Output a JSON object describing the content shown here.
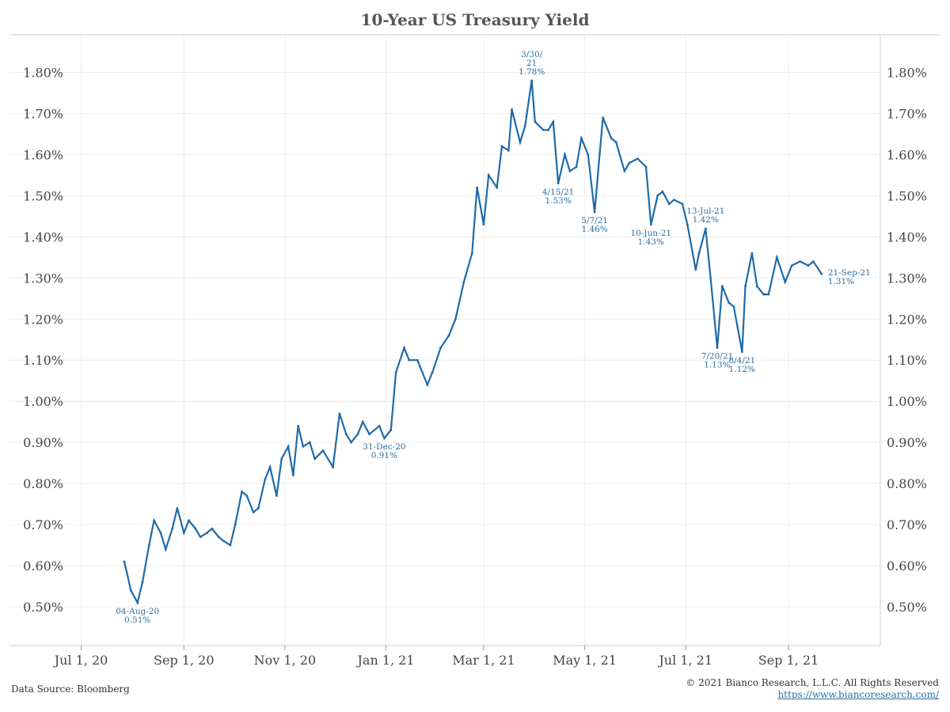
{
  "footer": {
    "source": "Data Source: Bloomberg",
    "copyright": "© 2021 Bianco Research, L.L.C. All Rights Reserved",
    "url": "https://www.biancoresearch.com/"
  },
  "colors": {
    "series": "#1f6aa8",
    "annotation": "#2c6ea2",
    "grid": "#ececec",
    "axis": "#cccccc"
  },
  "chart_data": {
    "type": "line",
    "title": "10-Year US Treasury Yield",
    "xlabel": "",
    "ylabel": "",
    "x_ticks": [
      "Jul 1, 20",
      "Sep 1, 20",
      "Nov 1, 20",
      "Jan 1, 21",
      "Mar 1, 21",
      "May 1, 21",
      "Jul 1, 21",
      "Sep 1, 21"
    ],
    "y_ticks": [
      "0.50%",
      "0.60%",
      "0.70%",
      "0.80%",
      "0.90%",
      "1.00%",
      "1.10%",
      "1.20%",
      "1.30%",
      "1.40%",
      "1.50%",
      "1.60%",
      "1.70%",
      "1.80%"
    ],
    "ylim": [
      0.45,
      1.9
    ],
    "xlim": [
      "2020-06-25",
      "2021-10-15"
    ],
    "grid": true,
    "dual_y_axis": true,
    "series": [
      {
        "points": [
          [
            "2020-07-27",
            0.61
          ],
          [
            "2020-07-31",
            0.54
          ],
          [
            "2020-08-04",
            0.51
          ],
          [
            "2020-08-07",
            0.56
          ],
          [
            "2020-08-11",
            0.65
          ],
          [
            "2020-08-14",
            0.71
          ],
          [
            "2020-08-18",
            0.68
          ],
          [
            "2020-08-21",
            0.64
          ],
          [
            "2020-08-25",
            0.69
          ],
          [
            "2020-08-28",
            0.74
          ],
          [
            "2020-09-01",
            0.68
          ],
          [
            "2020-09-04",
            0.71
          ],
          [
            "2020-09-08",
            0.69
          ],
          [
            "2020-09-11",
            0.67
          ],
          [
            "2020-09-15",
            0.68
          ],
          [
            "2020-09-18",
            0.69
          ],
          [
            "2020-09-22",
            0.67
          ],
          [
            "2020-09-25",
            0.66
          ],
          [
            "2020-09-29",
            0.65
          ],
          [
            "2020-10-02",
            0.7
          ],
          [
            "2020-10-06",
            0.78
          ],
          [
            "2020-10-09",
            0.77
          ],
          [
            "2020-10-13",
            0.73
          ],
          [
            "2020-10-16",
            0.74
          ],
          [
            "2020-10-20",
            0.81
          ],
          [
            "2020-10-23",
            0.84
          ],
          [
            "2020-10-27",
            0.77
          ],
          [
            "2020-10-30",
            0.86
          ],
          [
            "2020-11-03",
            0.89
          ],
          [
            "2020-11-06",
            0.82
          ],
          [
            "2020-11-09",
            0.94
          ],
          [
            "2020-11-12",
            0.89
          ],
          [
            "2020-11-16",
            0.9
          ],
          [
            "2020-11-19",
            0.86
          ],
          [
            "2020-11-24",
            0.88
          ],
          [
            "2020-11-30",
            0.84
          ],
          [
            "2020-12-04",
            0.97
          ],
          [
            "2020-12-08",
            0.92
          ],
          [
            "2020-12-11",
            0.9
          ],
          [
            "2020-12-15",
            0.92
          ],
          [
            "2020-12-18",
            0.95
          ],
          [
            "2020-12-22",
            0.92
          ],
          [
            "2020-12-28",
            0.94
          ],
          [
            "2020-12-31",
            0.91
          ],
          [
            "2021-01-04",
            0.93
          ],
          [
            "2021-01-07",
            1.07
          ],
          [
            "2021-01-12",
            1.13
          ],
          [
            "2021-01-15",
            1.1
          ],
          [
            "2021-01-20",
            1.1
          ],
          [
            "2021-01-26",
            1.04
          ],
          [
            "2021-01-29",
            1.07
          ],
          [
            "2021-02-03",
            1.13
          ],
          [
            "2021-02-08",
            1.16
          ],
          [
            "2021-02-12",
            1.2
          ],
          [
            "2021-02-17",
            1.29
          ],
          [
            "2021-02-22",
            1.36
          ],
          [
            "2021-02-25",
            1.52
          ],
          [
            "2021-03-01",
            1.43
          ],
          [
            "2021-03-04",
            1.55
          ],
          [
            "2021-03-09",
            1.52
          ],
          [
            "2021-03-12",
            1.62
          ],
          [
            "2021-03-16",
            1.61
          ],
          [
            "2021-03-18",
            1.71
          ],
          [
            "2021-03-23",
            1.63
          ],
          [
            "2021-03-26",
            1.67
          ],
          [
            "2021-03-30",
            1.78
          ],
          [
            "2021-04-01",
            1.68
          ],
          [
            "2021-04-06",
            1.66
          ],
          [
            "2021-04-09",
            1.66
          ],
          [
            "2021-04-12",
            1.68
          ],
          [
            "2021-04-15",
            1.53
          ],
          [
            "2021-04-19",
            1.6
          ],
          [
            "2021-04-22",
            1.56
          ],
          [
            "2021-04-26",
            1.57
          ],
          [
            "2021-04-29",
            1.64
          ],
          [
            "2021-05-03",
            1.6
          ],
          [
            "2021-05-07",
            1.46
          ],
          [
            "2021-05-10",
            1.6
          ],
          [
            "2021-05-12",
            1.69
          ],
          [
            "2021-05-17",
            1.64
          ],
          [
            "2021-05-20",
            1.63
          ],
          [
            "2021-05-25",
            1.56
          ],
          [
            "2021-05-28",
            1.58
          ],
          [
            "2021-06-02",
            1.59
          ],
          [
            "2021-06-07",
            1.57
          ],
          [
            "2021-06-10",
            1.43
          ],
          [
            "2021-06-14",
            1.5
          ],
          [
            "2021-06-17",
            1.51
          ],
          [
            "2021-06-21",
            1.48
          ],
          [
            "2021-06-24",
            1.49
          ],
          [
            "2021-06-29",
            1.48
          ],
          [
            "2021-07-02",
            1.43
          ],
          [
            "2021-07-07",
            1.32
          ],
          [
            "2021-07-09",
            1.36
          ],
          [
            "2021-07-13",
            1.42
          ],
          [
            "2021-07-16",
            1.3
          ],
          [
            "2021-07-20",
            1.13
          ],
          [
            "2021-07-23",
            1.28
          ],
          [
            "2021-07-27",
            1.24
          ],
          [
            "2021-07-30",
            1.23
          ],
          [
            "2021-08-04",
            1.12
          ],
          [
            "2021-08-06",
            1.28
          ],
          [
            "2021-08-10",
            1.36
          ],
          [
            "2021-08-13",
            1.28
          ],
          [
            "2021-08-17",
            1.26
          ],
          [
            "2021-08-20",
            1.26
          ],
          [
            "2021-08-25",
            1.35
          ],
          [
            "2021-08-30",
            1.29
          ],
          [
            "2021-09-03",
            1.33
          ],
          [
            "2021-09-08",
            1.34
          ],
          [
            "2021-09-13",
            1.33
          ],
          [
            "2021-09-16",
            1.34
          ],
          [
            "2021-09-21",
            1.31
          ]
        ]
      }
    ],
    "annotations": [
      {
        "date": "2020-08-04",
        "value": 0.51,
        "lines": [
          "04-Aug-20",
          "0.51%"
        ],
        "placement": "below"
      },
      {
        "date": "2020-12-31",
        "value": 0.91,
        "lines": [
          "31-Dec-20",
          "0.91%"
        ],
        "placement": "below"
      },
      {
        "date": "2021-03-30",
        "value": 1.78,
        "lines": [
          "3/30/",
          "21",
          "1.78%"
        ],
        "placement": "above"
      },
      {
        "date": "2021-04-15",
        "value": 1.53,
        "lines": [
          "4/15/21",
          "1.53%"
        ],
        "placement": "below"
      },
      {
        "date": "2021-05-07",
        "value": 1.46,
        "lines": [
          "5/7/21",
          "1.46%"
        ],
        "placement": "below"
      },
      {
        "date": "2021-06-10",
        "value": 1.43,
        "lines": [
          "10-Jun-21",
          "1.43%"
        ],
        "placement": "below"
      },
      {
        "date": "2021-07-13",
        "value": 1.42,
        "lines": [
          "13-Jul-21",
          "1.42%"
        ],
        "placement": "above"
      },
      {
        "date": "2021-07-20",
        "value": 1.13,
        "lines": [
          "7/20/21",
          "1.13%"
        ],
        "placement": "below"
      },
      {
        "date": "2021-08-04",
        "value": 1.12,
        "lines": [
          "8/4/21",
          "1.12%"
        ],
        "placement": "below"
      },
      {
        "date": "2021-09-21",
        "value": 1.31,
        "lines": [
          "21-Sep-21",
          "1.31%"
        ],
        "placement": "right"
      }
    ]
  }
}
